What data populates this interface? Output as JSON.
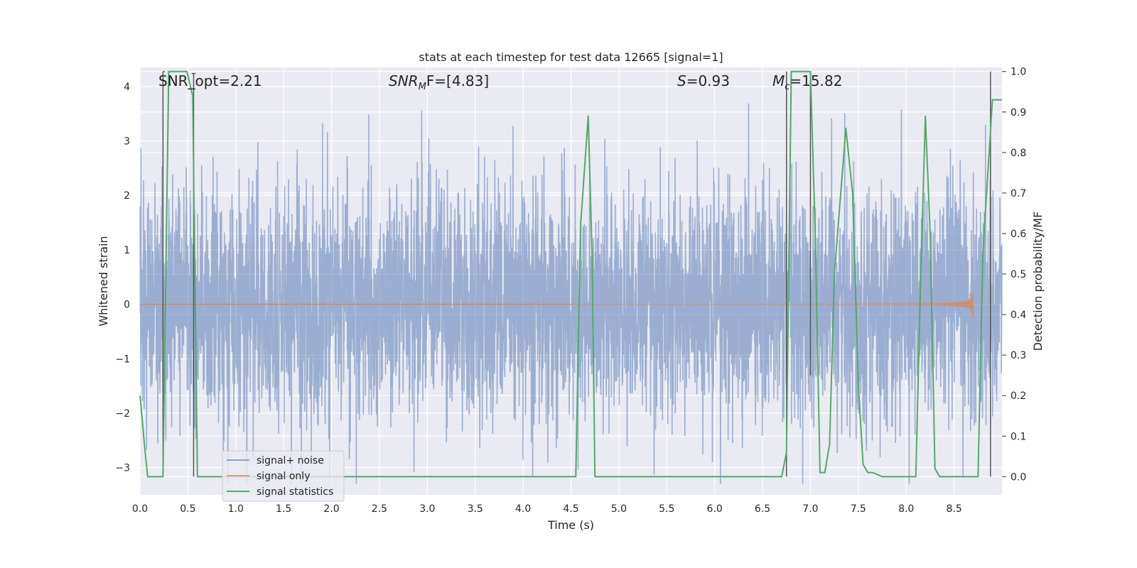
{
  "chart_data": {
    "type": "line",
    "title": "stats at each timestep for test data 12665 [signal=1]",
    "xlabel": "Time (s)",
    "ylabel_left": "Whitened strain",
    "ylabel_right": "Detection probability/MF",
    "xlim": [
      0.0,
      9.0
    ],
    "ylim_left": [
      -3.5,
      4.35
    ],
    "ylim_right": [
      -0.045,
      1.01
    ],
    "xticks": [
      "0.0",
      "0.5",
      "1.0",
      "1.5",
      "2.0",
      "2.5",
      "3.0",
      "3.5",
      "4.0",
      "4.5",
      "5.0",
      "5.5",
      "6.0",
      "6.5",
      "7.0",
      "7.5",
      "8.0",
      "8.5"
    ],
    "yticks_left": [
      "−3",
      "−2",
      "−1",
      "0",
      "1",
      "2",
      "3",
      "4"
    ],
    "yticks_right": [
      "0.0",
      "0.1",
      "0.2",
      "0.3",
      "0.4",
      "0.5",
      "0.6",
      "0.7",
      "0.8",
      "0.9",
      "1.0"
    ],
    "grid": true,
    "legend_position": "lower-left",
    "annotations": {
      "snr_opt": "SNR_opt=2.21",
      "snr_mf_sym": "SNR",
      "snr_mf_sub": "M",
      "snr_mf_rest": "F=[4.83]",
      "s_sym": "S",
      "s_rest": "=0.93",
      "mc_sym": "M",
      "mc_sub": "c",
      "mc_rest": "=15.82"
    },
    "colors": {
      "background": "#eaeaf2",
      "noise": "#4c72b0",
      "signal": "#dd8452",
      "stat": "#55a868",
      "vline": "#555555"
    },
    "series": [
      {
        "name": "signal+ noise",
        "axis": "left",
        "description": "whitened strain noise, roughly Gaussian, amplitude ~1 with peaks to about ±3.5",
        "std": 1.05,
        "peak_max": 4.0,
        "peak_min": -3.3
      },
      {
        "name": "signal only",
        "axis": "left",
        "description": "chirp signal growing until merger",
        "merger_time": 8.7,
        "peak_amplitude": 0.32
      },
      {
        "name": "signal statistics",
        "axis": "right",
        "x": [
          0.0,
          0.05,
          0.08,
          0.12,
          0.2,
          0.24,
          0.3,
          0.35,
          0.42,
          0.49,
          0.55,
          0.6,
          0.64,
          1.0,
          2.0,
          3.0,
          4.0,
          4.55,
          4.6,
          4.68,
          4.72,
          4.75,
          5.0,
          6.0,
          6.7,
          6.75,
          6.8,
          6.85,
          6.95,
          7.0,
          7.05,
          7.1,
          7.15,
          7.2,
          7.25,
          7.3,
          7.37,
          7.44,
          7.5,
          7.55,
          7.6,
          7.65,
          7.75,
          7.85,
          8.0,
          8.1,
          8.15,
          8.2,
          8.25,
          8.3,
          8.35,
          8.4,
          8.6,
          8.75,
          8.8,
          8.9,
          9.0
        ],
        "values": [
          0.2,
          0.07,
          0.0,
          0.0,
          0.0,
          0.0,
          1.0,
          1.0,
          1.0,
          1.0,
          0.94,
          0.0,
          0.0,
          0.0,
          0.0,
          0.0,
          0.0,
          0.0,
          0.62,
          0.89,
          0.55,
          0.0,
          0.0,
          0.0,
          0.0,
          0.06,
          1.0,
          1.0,
          1.0,
          1.0,
          0.6,
          0.01,
          0.01,
          0.08,
          0.5,
          0.65,
          0.86,
          0.7,
          0.23,
          0.03,
          0.01,
          0.01,
          0.0,
          0.0,
          0.0,
          0.0,
          0.48,
          0.89,
          0.6,
          0.02,
          0.0,
          0.0,
          0.0,
          0.0,
          0.55,
          0.93,
          0.93
        ]
      }
    ],
    "vertical_lines_right": [
      {
        "x": 0.24,
        "bottom": 0.0,
        "top": 1.0
      },
      {
        "x": 0.56,
        "bottom": 0.0,
        "top": 0.995
      },
      {
        "x": 6.75,
        "bottom": 0.0,
        "top": 1.0
      },
      {
        "x": 7.0,
        "bottom": 0.25,
        "top": 1.0
      },
      {
        "x": 8.88,
        "bottom": 0.0,
        "top": 1.0
      }
    ],
    "error_bar_connectors": [
      {
        "x1": 0.24,
        "x2": 0.26,
        "y": 1.0
      },
      {
        "x1": 0.54,
        "x2": 0.58,
        "y": 0.995
      }
    ]
  }
}
